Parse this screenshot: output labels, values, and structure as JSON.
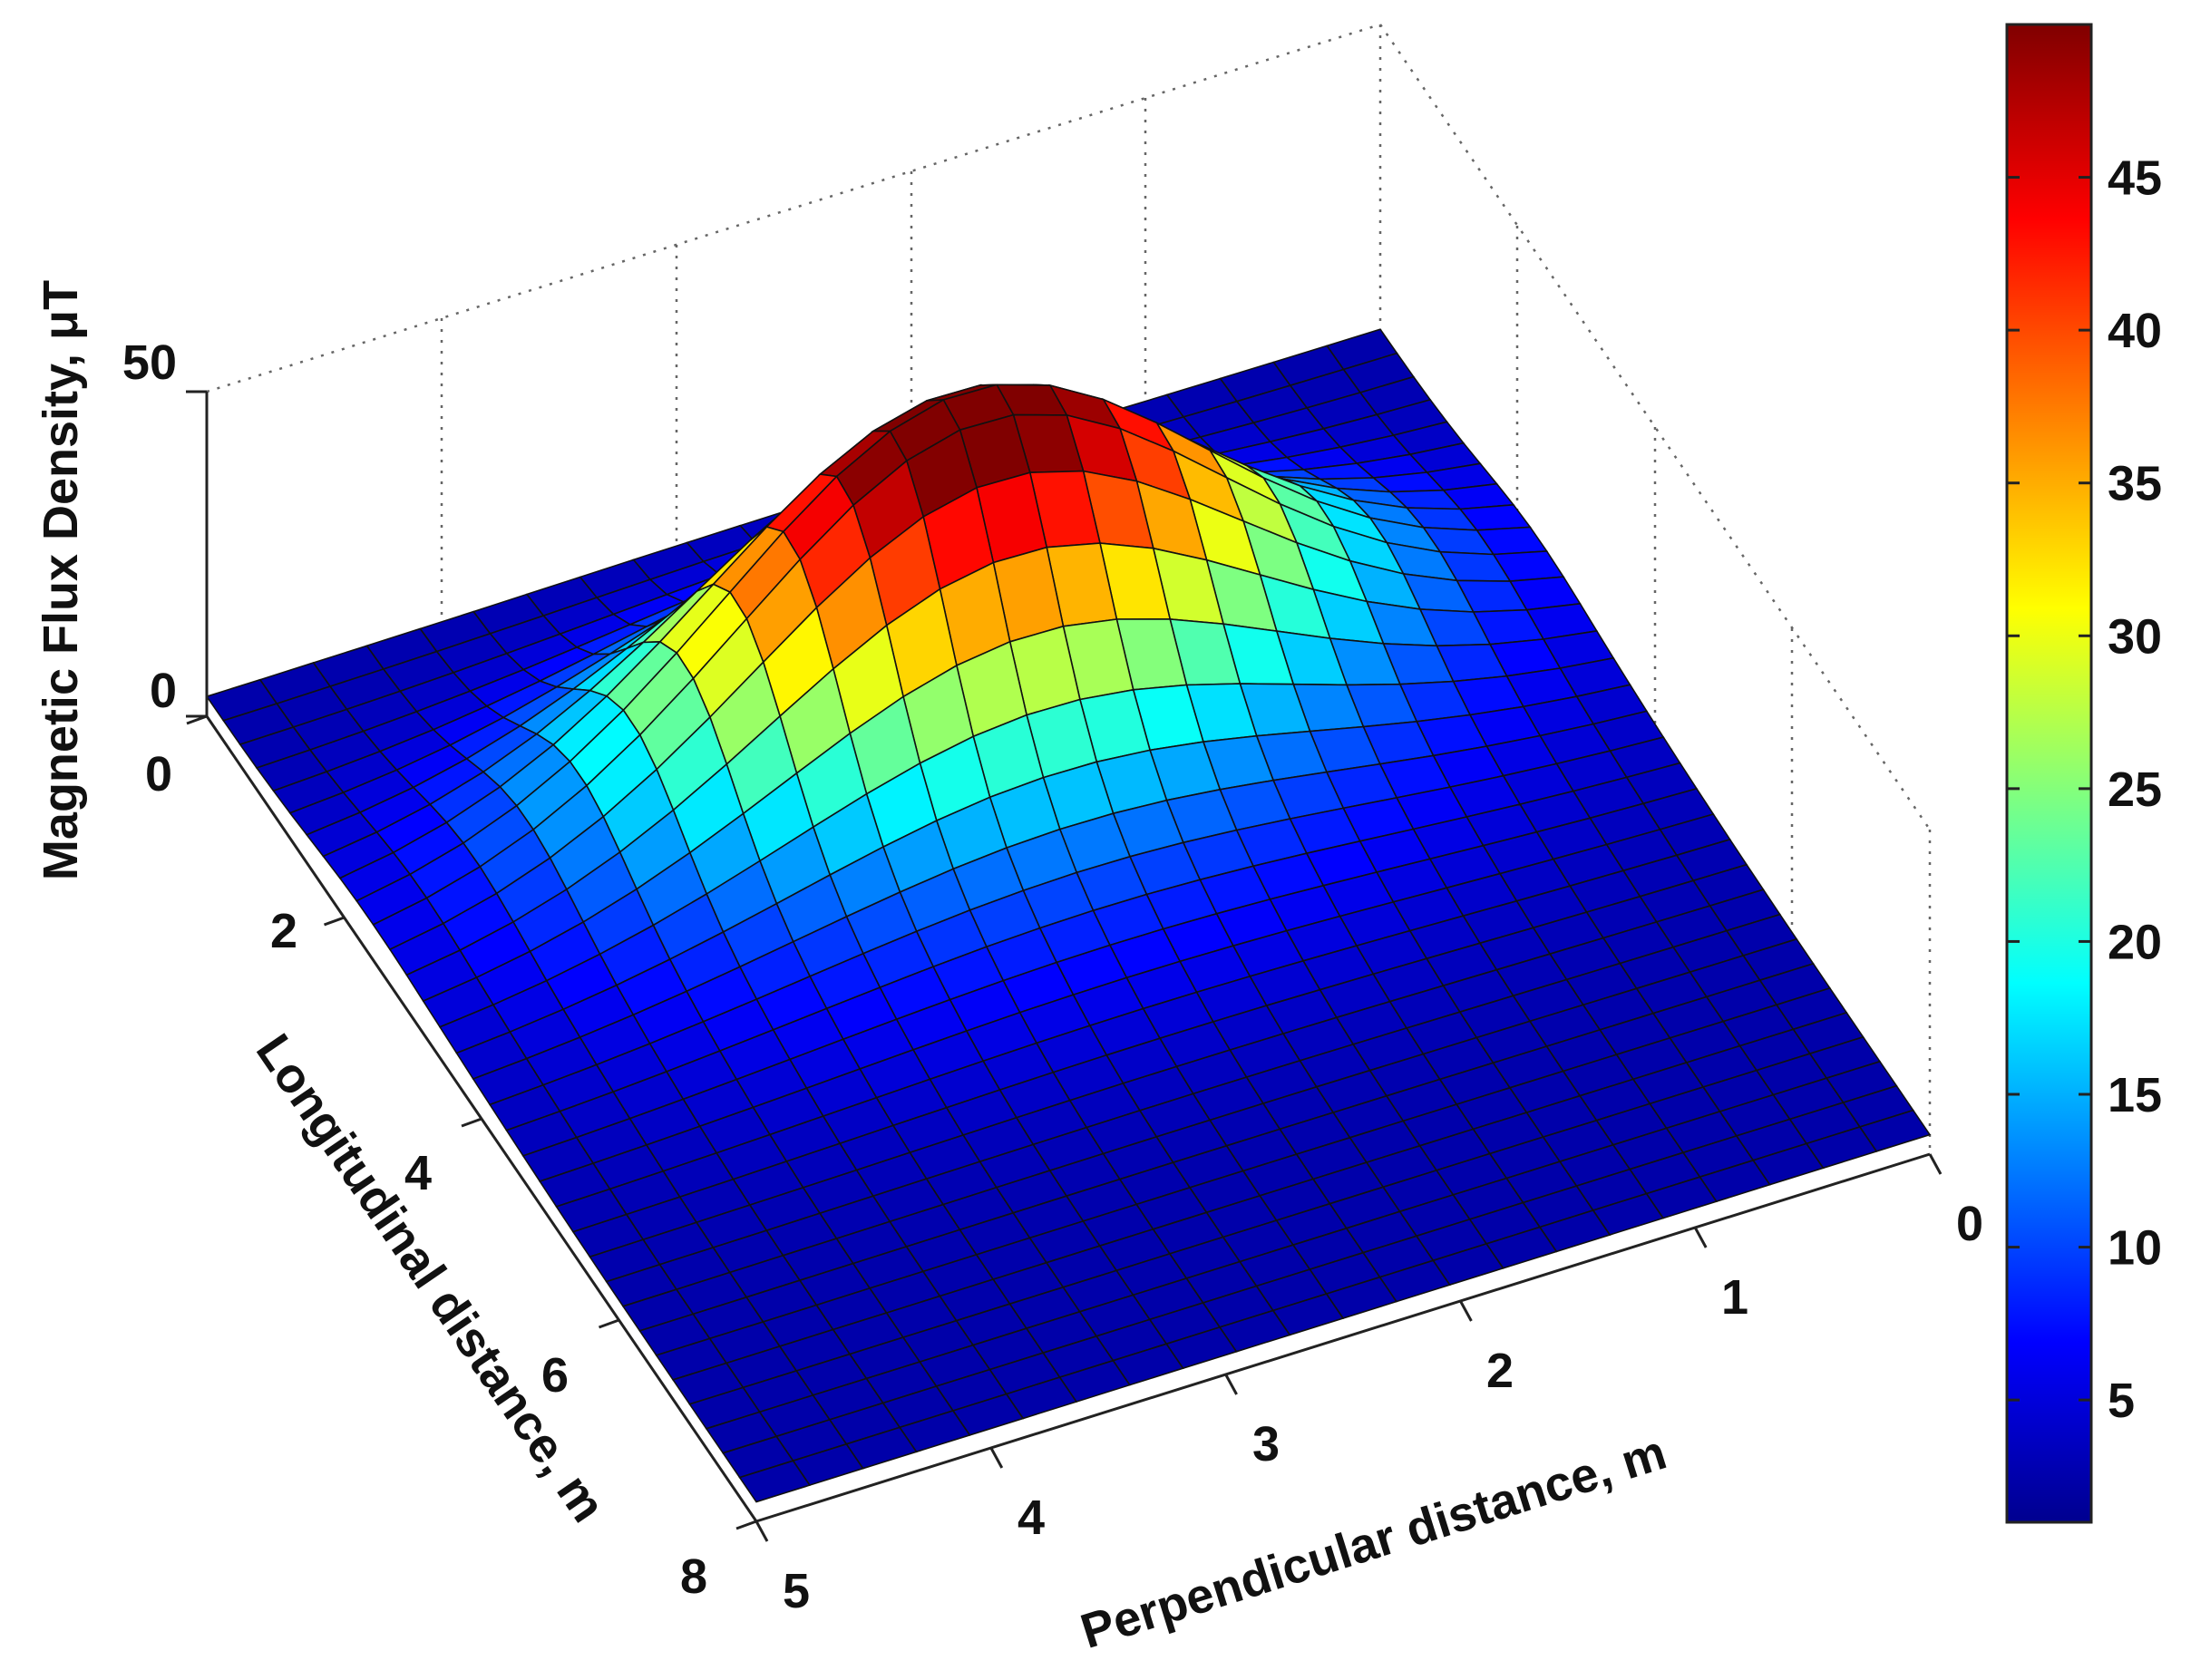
{
  "chart_data": {
    "type": "surface",
    "title": "",
    "zlabel": "Magnetic Flux Density,  μT",
    "longitudinal_label": "Longitudinal distance, m",
    "perpendicular_label": "Perpendicular distance, m",
    "perpendicular_range": [
      0,
      5
    ],
    "longitudinal_range": [
      0,
      8
    ],
    "z_range": [
      0,
      50
    ],
    "perpendicular_ticks": [
      "0",
      "1",
      "2",
      "3",
      "4",
      "5"
    ],
    "longitudinal_ticks": [
      "0",
      "2",
      "4",
      "6",
      "8"
    ],
    "z_ticks": [
      "0",
      "50"
    ],
    "grid": true,
    "colormap": "jet",
    "colorbar": {
      "range": [
        1,
        50
      ],
      "ticks": [
        "5",
        "10",
        "15",
        "20",
        "25",
        "30",
        "35",
        "40",
        "45"
      ],
      "placement": "right"
    },
    "peak": {
      "perpendicular": 2.6,
      "longitudinal": 2.2,
      "value": 48
    },
    "notes": "3D surface of magnetic flux density over a 5 m x 8 m area; single ridge peaking near 48 μT."
  }
}
